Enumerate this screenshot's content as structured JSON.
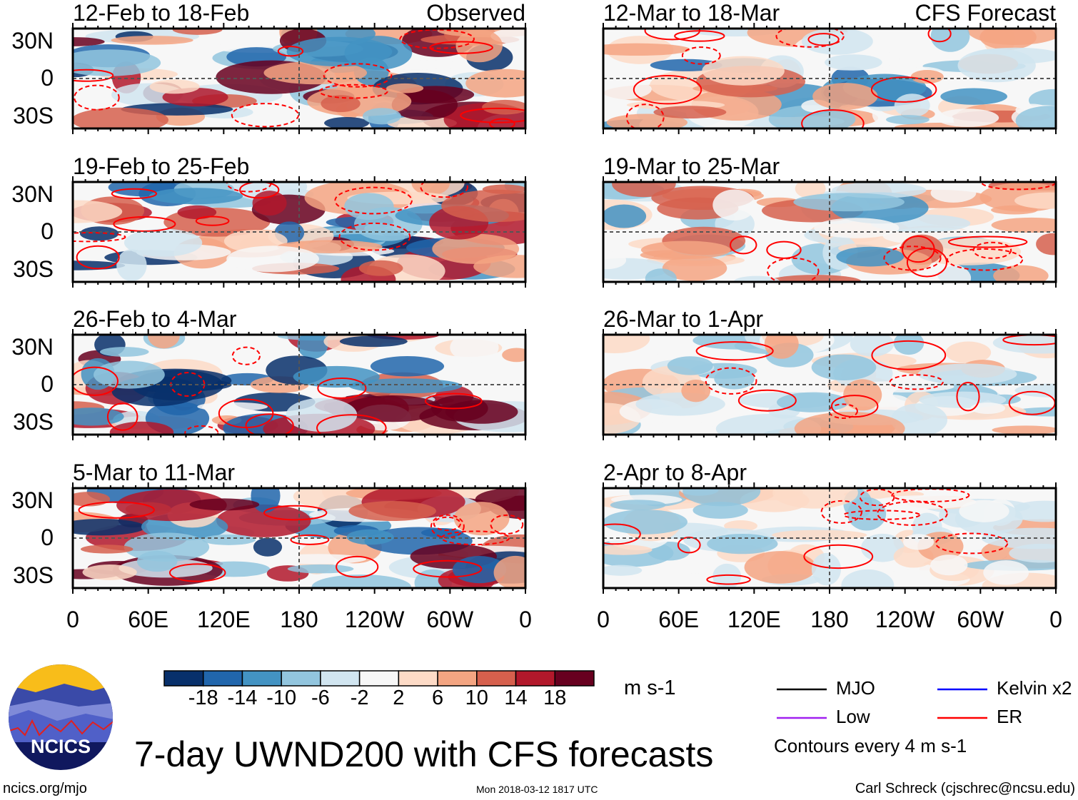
{
  "chart_data": {
    "type": "heatmap",
    "title": "7-day UWND200 with CFS forecasts",
    "variable": "UWND200",
    "units": "m s-1",
    "column_labels": [
      "Observed",
      "CFS Forecast"
    ],
    "panels": [
      {
        "period": "12-Feb to 18-Feb",
        "source": "Observed"
      },
      {
        "period": "19-Feb to 25-Feb",
        "source": "Observed"
      },
      {
        "period": "26-Feb to 4-Mar",
        "source": "Observed"
      },
      {
        "period": "5-Mar to 11-Mar",
        "source": "Observed"
      },
      {
        "period": "12-Mar to 18-Mar",
        "source": "CFS Forecast"
      },
      {
        "period": "19-Mar to 25-Mar",
        "source": "CFS Forecast"
      },
      {
        "period": "26-Mar to 1-Apr",
        "source": "CFS Forecast"
      },
      {
        "period": "2-Apr to 8-Apr",
        "source": "CFS Forecast"
      }
    ],
    "y_ticks": [
      "30N",
      "0",
      "30S"
    ],
    "x_ticks": [
      "0",
      "60E",
      "120E",
      "180",
      "120W",
      "60W",
      "0"
    ],
    "x_range_deg": [
      0,
      360
    ],
    "y_range_deg": [
      -40,
      40
    ],
    "colorbar": {
      "labels": [
        "-18",
        "-14",
        "-10",
        "-6",
        "-2",
        "2",
        "6",
        "10",
        "14",
        "18"
      ],
      "colors": [
        "#08306b",
        "#2166ac",
        "#4393c3",
        "#92c5de",
        "#d1e5f0",
        "#f7f7f7",
        "#fddbc7",
        "#f4a582",
        "#d6604d",
        "#b2182b",
        "#67001f"
      ]
    },
    "legend": [
      {
        "label": "MJO",
        "color": "#000000"
      },
      {
        "label": "Kelvin x2",
        "color": "#0000ff"
      },
      {
        "label": "Low",
        "color": "#a020f0"
      },
      {
        "label": "ER",
        "color": "#ff0000"
      }
    ],
    "contour_note": "Contours every 4 m s-1"
  },
  "footer": {
    "logo_text": "NCICS",
    "site": "ncics.org/mjo",
    "timestamp": "Mon 2018-03-12 1817 UTC",
    "author": "Carl Schreck (cjschrec@ncsu.edu)"
  }
}
